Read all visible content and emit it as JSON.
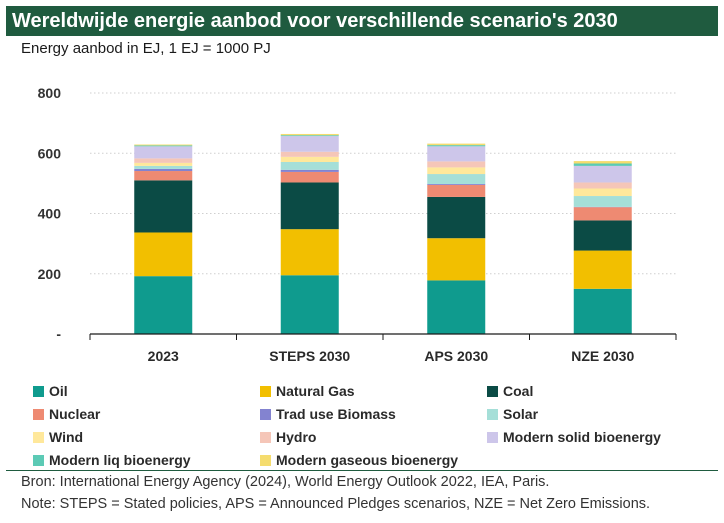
{
  "header": {
    "title": "Wereldwijde energie aanbod voor verschillende scenario's 2030",
    "subtitle": "Energy aanbod in EJ, 1 EJ = 1000 PJ"
  },
  "footer": {
    "source": "Bron: International Energy Agency (2024), World Energy Outlook 2022, IEA, Paris.",
    "note": "Note: STEPS = Stated policies, APS = Announced Pledges scenarios, NZE = Net Zero Emissions."
  },
  "colors": {
    "title_bg": "#1f5b3f",
    "grid": "#cfcfcf",
    "axis": "#1a1a1a"
  },
  "chart_data": {
    "type": "bar",
    "stacked": true,
    "title": "Wereldwijde energie aanbod voor verschillende scenario's 2030",
    "ylabel": "Energy aanbod in EJ, 1 EJ = 1000 PJ",
    "xlabel": "",
    "ylim": [
      0,
      800
    ],
    "yticks": [
      0,
      200,
      400,
      600,
      800
    ],
    "ytick_labels": [
      "-",
      "200",
      "400",
      "600",
      "800"
    ],
    "grid": true,
    "categories": [
      "2023",
      "STEPS 2030",
      "APS 2030",
      "NZE 2030"
    ],
    "series": [
      {
        "name": "Oil",
        "color": "#0f9b8e",
        "values": [
          192,
          195,
          178,
          150
        ]
      },
      {
        "name": "Natural Gas",
        "color": "#f2bf00",
        "values": [
          145,
          153,
          140,
          127
        ]
      },
      {
        "name": "Coal",
        "color": "#0b4b45",
        "values": [
          173,
          155,
          137,
          100
        ]
      },
      {
        "name": "Nuclear",
        "color": "#ee8a72",
        "values": [
          31,
          35,
          40,
          44
        ]
      },
      {
        "name": "Trad use Biomass",
        "color": "#8383d0",
        "values": [
          7,
          7,
          3,
          1
        ]
      },
      {
        "name": "Solar",
        "color": "#a5dfd8",
        "values": [
          10,
          26,
          33,
          36
        ]
      },
      {
        "name": "Wind",
        "color": "#ffe89b",
        "values": [
          10,
          17,
          22,
          25
        ]
      },
      {
        "name": "Hydro",
        "color": "#f5c6b8",
        "values": [
          15,
          17,
          20,
          20
        ]
      },
      {
        "name": "Modern solid bioenergy",
        "color": "#cdc6ea",
        "values": [
          40,
          52,
          50,
          55
        ]
      },
      {
        "name": "Modern liq bioenergy",
        "color": "#5ccab5",
        "values": [
          3,
          3,
          4,
          8
        ]
      },
      {
        "name": "Modern gaseous bioenergy",
        "color": "#f5dc6e",
        "values": [
          3,
          4,
          5,
          8
        ]
      }
    ]
  }
}
